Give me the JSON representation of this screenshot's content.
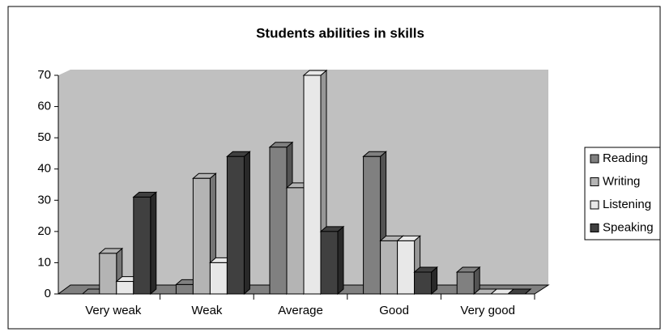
{
  "chart_data": {
    "type": "bar",
    "title": "Students abilities in skills",
    "categories": [
      "Very weak",
      "Weak",
      "Average",
      "Good",
      "Very good"
    ],
    "series": [
      {
        "name": "Reading",
        "color": "#808080",
        "values": [
          0,
          3,
          47,
          44,
          7
        ]
      },
      {
        "name": "Writing",
        "color": "#b4b4b4",
        "values": [
          13,
          37,
          34,
          17,
          0
        ]
      },
      {
        "name": "Listening",
        "color": "#e8e8e8",
        "values": [
          4,
          10,
          70,
          17,
          0
        ]
      },
      {
        "name": "Speaking",
        "color": "#404040",
        "values": [
          31,
          44,
          20,
          7,
          0
        ]
      }
    ],
    "ylim": [
      0,
      70
    ],
    "yticks": [
      0,
      10,
      20,
      30,
      40,
      50,
      60,
      70
    ],
    "legend": "right"
  }
}
